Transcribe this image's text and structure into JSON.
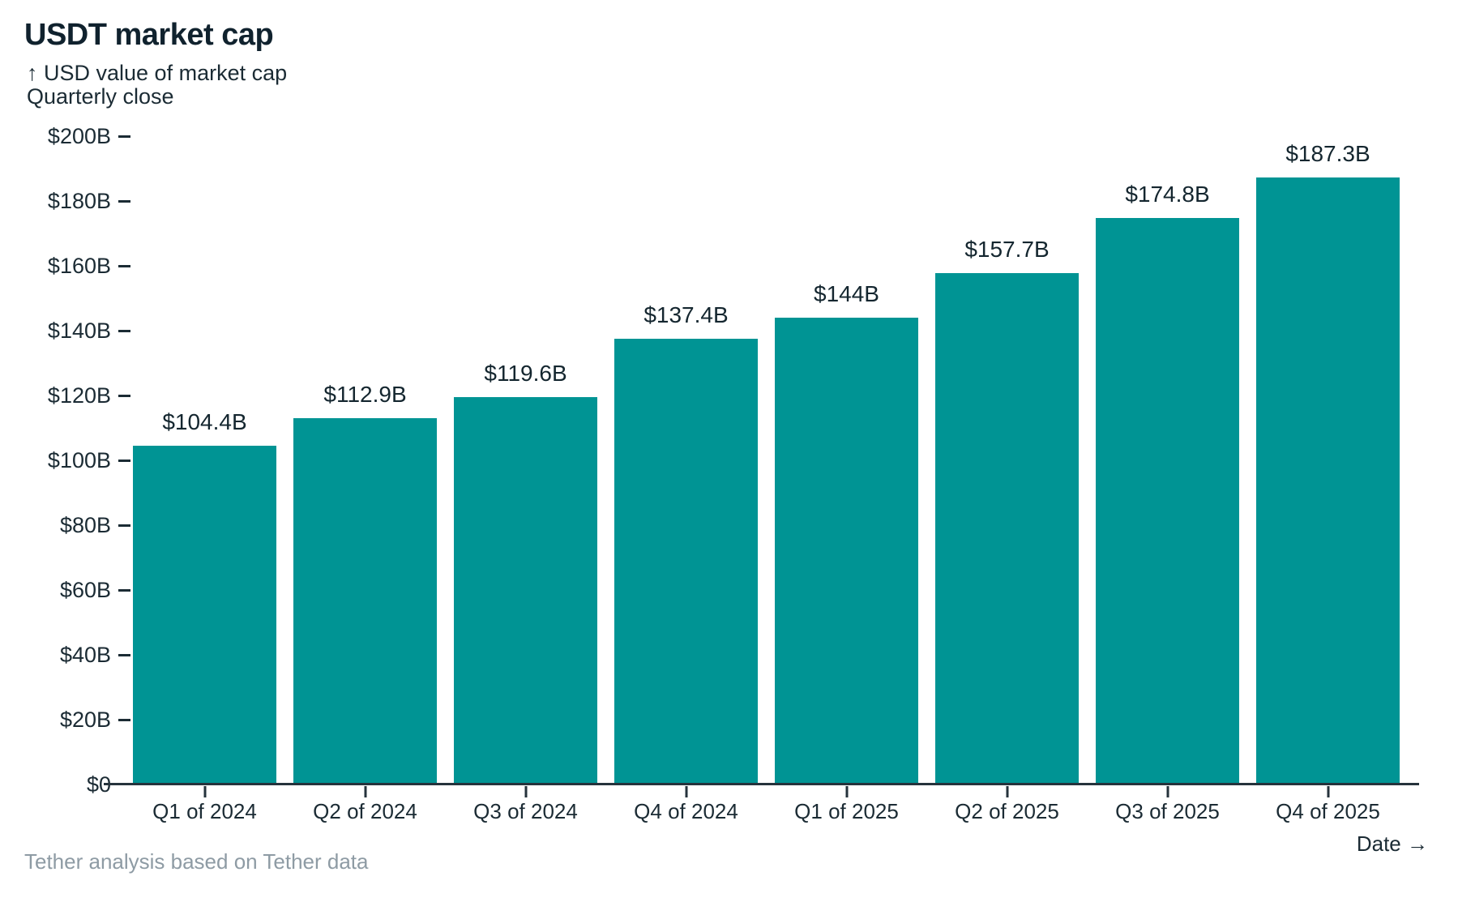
{
  "header": {
    "title": "USDT market cap",
    "subtitle_line1": "↑ USD value of market cap",
    "subtitle_line2": "Quarterly close"
  },
  "axis": {
    "x_title": "Date →"
  },
  "footer": {
    "source": "Tether analysis based on Tether data"
  },
  "colors": {
    "bar": "#009494",
    "ink": "#1b2b34",
    "axis_line": "#26333c",
    "muted": "#8e9ba4"
  },
  "chart_data": {
    "type": "bar",
    "title": "USDT market cap",
    "ylabel": "USD value of market cap",
    "xlabel": "Date",
    "frequency": "Quarterly close",
    "categories": [
      "Q1 of 2024",
      "Q2 of 2024",
      "Q3 of 2024",
      "Q4 of 2024",
      "Q1 of 2025",
      "Q2 of 2025",
      "Q3 of 2025",
      "Q4 of 2025"
    ],
    "values": [
      104.4,
      112.9,
      119.6,
      137.4,
      144,
      157.7,
      174.8,
      187.3
    ],
    "value_labels": [
      "$104.4B",
      "$112.9B",
      "$119.6B",
      "$137.4B",
      "$144B",
      "$157.7B",
      "$174.8B",
      "$187.3B"
    ],
    "ylim": [
      0,
      200
    ],
    "y_ticks": [
      {
        "label": "$0",
        "value": 0
      },
      {
        "label": "$20B",
        "value": 20
      },
      {
        "label": "$40B",
        "value": 40
      },
      {
        "label": "$60B",
        "value": 60
      },
      {
        "label": "$80B",
        "value": 80
      },
      {
        "label": "$100B",
        "value": 100
      },
      {
        "label": "$120B",
        "value": 120
      },
      {
        "label": "$140B",
        "value": 140
      },
      {
        "label": "$160B",
        "value": 160
      },
      {
        "label": "$180B",
        "value": 180
      },
      {
        "label": "$200B",
        "value": 200
      }
    ],
    "grid": false,
    "legend": false
  }
}
